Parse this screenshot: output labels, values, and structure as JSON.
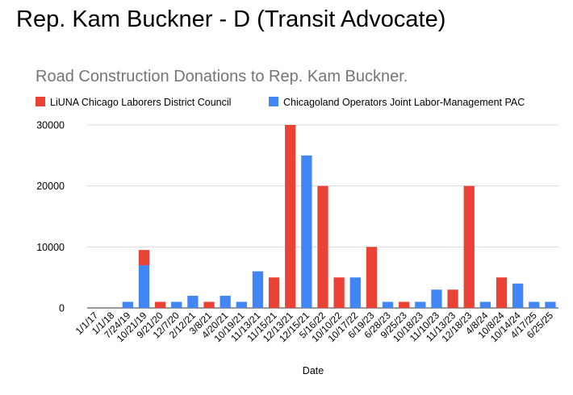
{
  "page": {
    "heading": "Rep. Kam Buckner - D (Transit Advocate)"
  },
  "colors": {
    "liuna": "#ea4335",
    "operators": "#4285f4",
    "title": "#757575",
    "text": "#000000",
    "grid": "#d9d9d9"
  },
  "chart_data": {
    "type": "bar",
    "stacked": true,
    "title": "Road Construction Donations to Rep. Kam Buckner.",
    "xlabel": "Date",
    "ylabel": "",
    "ylim": [
      0,
      30000
    ],
    "yticks": [
      0,
      10000,
      20000,
      30000
    ],
    "grid": true,
    "legend_position": "top",
    "categories": [
      "1/1/17",
      "1/1/18",
      "7/24/19",
      "10/21/19",
      "9/21/20",
      "12/7/20",
      "2/12/21",
      "3/8/21",
      "4/20/21",
      "10/19/21",
      "11/13/21",
      "11/15/21",
      "12/13/21",
      "12/15/21",
      "5/16/22",
      "10/10/22",
      "10/17/22",
      "6/19/23",
      "6/28/23",
      "9/25/23",
      "10/18/23",
      "11/10/23",
      "11/13/23",
      "12/18/23",
      "4/8/24",
      "10/8/24",
      "10/14/24",
      "4/17/25",
      "6/25/25"
    ],
    "series": [
      {
        "name": "LiUNA Chicago Laborers District Council",
        "color": "#ea4335",
        "values": [
          0,
          0,
          0,
          2500,
          1000,
          0,
          0,
          1000,
          0,
          0,
          0,
          5000,
          30000,
          0,
          20000,
          5000,
          0,
          10000,
          0,
          1000,
          0,
          0,
          3000,
          20000,
          0,
          5000,
          0,
          0,
          0
        ]
      },
      {
        "name": "Chicagoland Operators Joint Labor-Management PAC",
        "color": "#4285f4",
        "values": [
          0,
          0,
          1000,
          7000,
          0,
          1000,
          2000,
          0,
          2000,
          1000,
          6000,
          0,
          0,
          25000,
          0,
          0,
          5000,
          0,
          1000,
          0,
          1000,
          3000,
          0,
          0,
          1000,
          0,
          4000,
          1000,
          1000
        ]
      }
    ]
  }
}
